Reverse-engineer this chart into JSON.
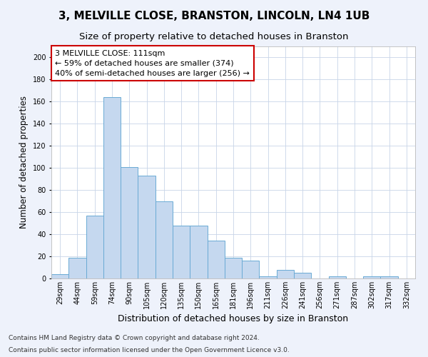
{
  "title": "3, MELVILLE CLOSE, BRANSTON, LINCOLN, LN4 1UB",
  "subtitle": "Size of property relative to detached houses in Branston",
  "xlabel": "Distribution of detached houses by size in Branston",
  "ylabel": "Number of detached properties",
  "bar_labels": [
    "29sqm",
    "44sqm",
    "59sqm",
    "74sqm",
    "90sqm",
    "105sqm",
    "120sqm",
    "135sqm",
    "150sqm",
    "165sqm",
    "181sqm",
    "196sqm",
    "211sqm",
    "226sqm",
    "241sqm",
    "256sqm",
    "271sqm",
    "287sqm",
    "302sqm",
    "317sqm",
    "332sqm"
  ],
  "bar_values": [
    4,
    19,
    57,
    164,
    101,
    93,
    70,
    48,
    48,
    34,
    19,
    16,
    2,
    8,
    5,
    0,
    2,
    0,
    2,
    2,
    0
  ],
  "bar_color": "#c5d8ef",
  "bar_edge_color": "#6aaad4",
  "ylim": [
    0,
    210
  ],
  "yticks": [
    0,
    20,
    40,
    60,
    80,
    100,
    120,
    140,
    160,
    180,
    200
  ],
  "annotation_text": "3 MELVILLE CLOSE: 111sqm\n← 59% of detached houses are smaller (374)\n40% of semi-detached houses are larger (256) →",
  "annotation_box_color": "#ffffff",
  "annotation_box_edge_color": "#cc0000",
  "footnote1": "Contains HM Land Registry data © Crown copyright and database right 2024.",
  "footnote2": "Contains public sector information licensed under the Open Government Licence v3.0.",
  "bg_color": "#eef2fb",
  "plot_bg_color": "#ffffff",
  "grid_color": "#c8d4e8",
  "title_fontsize": 11,
  "subtitle_fontsize": 9.5,
  "xlabel_fontsize": 9,
  "ylabel_fontsize": 8.5,
  "tick_fontsize": 7,
  "annotation_fontsize": 8,
  "footnote_fontsize": 6.5
}
